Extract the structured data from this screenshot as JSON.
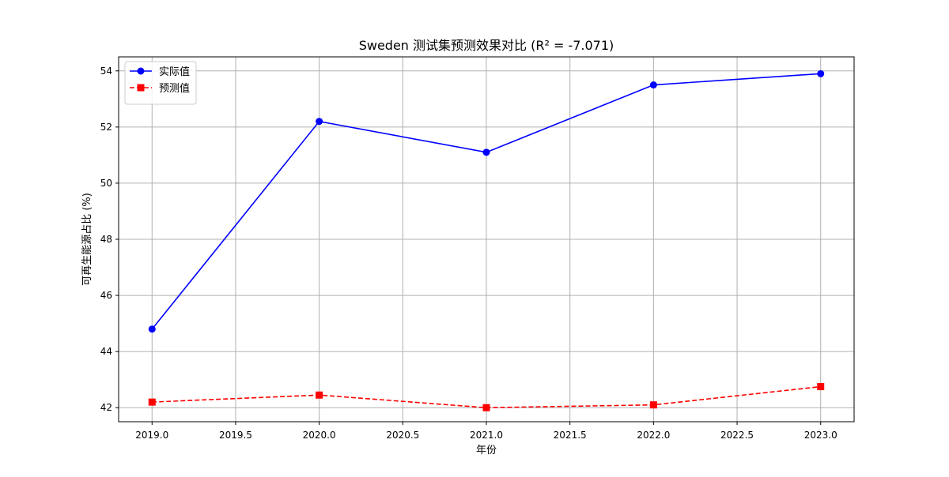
{
  "chart_data": {
    "type": "line",
    "title": "Sweden 测试集预测效果对比 (R² = -7.071)",
    "xlabel": "年份",
    "ylabel": "可再生能源占比 (%)",
    "x": [
      2019,
      2020,
      2021,
      2022,
      2023
    ],
    "xlim": [
      2018.8,
      2023.2
    ],
    "ylim": [
      41.5,
      54.5
    ],
    "xticks": [
      2019.0,
      2019.5,
      2020.0,
      2020.5,
      2021.0,
      2021.5,
      2022.0,
      2022.5,
      2023.0
    ],
    "xtick_labels": [
      "2019.0",
      "2019.5",
      "2020.0",
      "2020.5",
      "2021.0",
      "2021.5",
      "2022.0",
      "2022.5",
      "2023.0"
    ],
    "yticks": [
      42,
      44,
      46,
      48,
      50,
      52,
      54
    ],
    "ytick_labels": [
      "42",
      "44",
      "46",
      "48",
      "50",
      "52",
      "54"
    ],
    "grid": true,
    "legend_position": "top-left",
    "series": [
      {
        "name": "实际值",
        "values": [
          44.8,
          52.2,
          51.1,
          53.5,
          53.9
        ],
        "color": "#0000ff",
        "marker": "circle",
        "line_style": "solid"
      },
      {
        "name": "预测值",
        "values": [
          42.2,
          42.45,
          42.0,
          42.1,
          42.75
        ],
        "color": "#ff0000",
        "marker": "square",
        "line_style": "dashed"
      }
    ]
  }
}
